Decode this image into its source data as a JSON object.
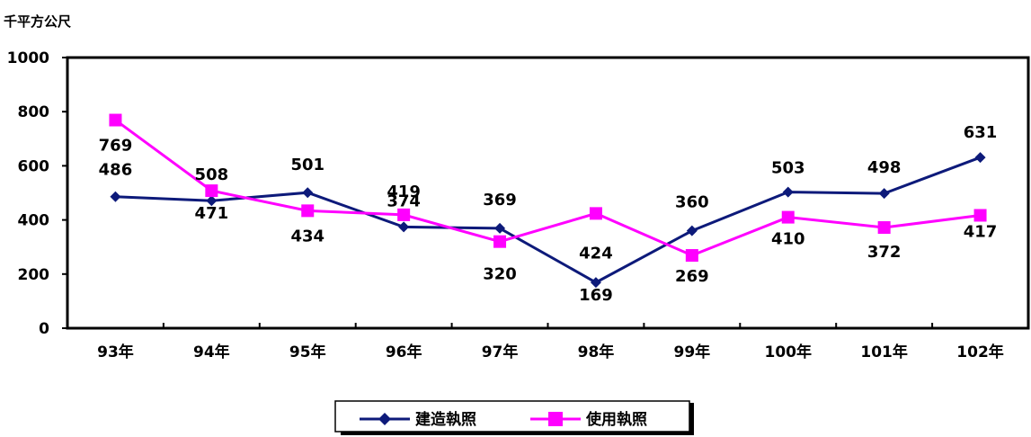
{
  "chart_data": {
    "type": "line",
    "unit_label": "千平方公尺",
    "categories": [
      "93年",
      "94年",
      "95年",
      "96年",
      "97年",
      "98年",
      "99年",
      "100年",
      "101年",
      "102年"
    ],
    "ylim": [
      0,
      1000
    ],
    "yticks": [
      0,
      200,
      400,
      600,
      800,
      1000
    ],
    "grid": false,
    "legend_position": "bottom-center",
    "series": [
      {
        "name": "建造執照",
        "color": "#0d1a7a",
        "marker": "diamond",
        "values": [
          486,
          471,
          501,
          374,
          369,
          169,
          360,
          503,
          498,
          631
        ],
        "labels": [
          "486",
          "471",
          "501",
          "374",
          "369",
          "169",
          "360",
          "503",
          "498",
          "631"
        ]
      },
      {
        "name": "使用執照",
        "color": "#ff00ff",
        "marker": "square",
        "values": [
          769,
          508,
          434,
          419,
          320,
          424,
          269,
          410,
          372,
          417
        ],
        "labels": [
          "769",
          "508",
          "434",
          "419",
          "320",
          "424",
          "269",
          "410",
          "372",
          "417"
        ]
      }
    ]
  }
}
